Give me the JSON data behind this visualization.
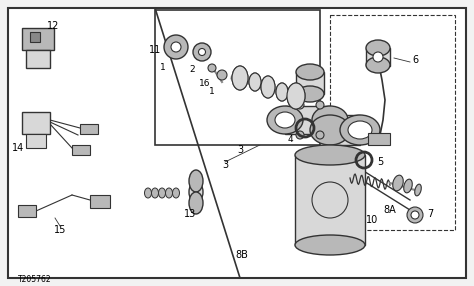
{
  "bg_color": "#f2f2f2",
  "title_code": "T205762",
  "lc": "#333333",
  "white": "#ffffff",
  "gray_light": "#d8d8d8",
  "gray_mid": "#b8b8b8",
  "gray_dark": "#888888"
}
